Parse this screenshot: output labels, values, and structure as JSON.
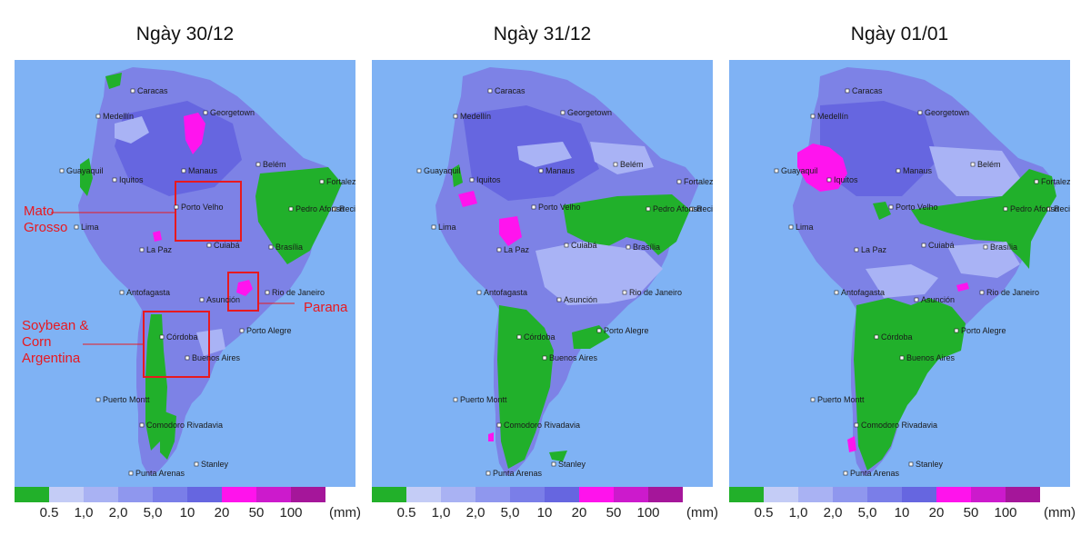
{
  "panels": [
    {
      "title": "Ngày 30/12"
    },
    {
      "title": "Ngày 31/12"
    },
    {
      "title": "Ngày 01/01"
    }
  ],
  "cities": [
    "Caracas",
    "Medellín",
    "Georgetown",
    "Manaus",
    "Belém",
    "Guayaquil",
    "Iquitos",
    "Fortaleza",
    "Recife",
    "Porto Velho",
    "Pedro Afonso",
    "Lima",
    "La Paz",
    "Cuiabá",
    "Brasília",
    "Antofagasta",
    "Asunción",
    "Rio de Janeiro",
    "Córdoba",
    "Porto Alegre",
    "Buenos Aires",
    "Puerto Montt",
    "Comodoro Rivadavia",
    "Stanley",
    "Punta Arenas"
  ],
  "legend": {
    "colors": [
      "#22b02a",
      "#c4ccf6",
      "#a9b2f3",
      "#8f97ee",
      "#7a7ee8",
      "#6666e0",
      "#ff13ec",
      "#cc1acc",
      "#a5169a"
    ],
    "ticks": [
      "0.5",
      "1,0",
      "2,0",
      "5,0",
      "10",
      "20",
      "50",
      "100"
    ],
    "unit": "(mm)"
  },
  "colors": {
    "ocean": "#7fb2f4",
    "land": "#7d82e6",
    "dry": "#21b02b",
    "heavy": "#ff14ee",
    "light": "#a9b3f5",
    "annotation": "#e8191f"
  },
  "annotations": [
    {
      "label": "Mato Grosso"
    },
    {
      "label": "Parana"
    },
    {
      "label": "Soybean & Corn Argentina"
    }
  ]
}
